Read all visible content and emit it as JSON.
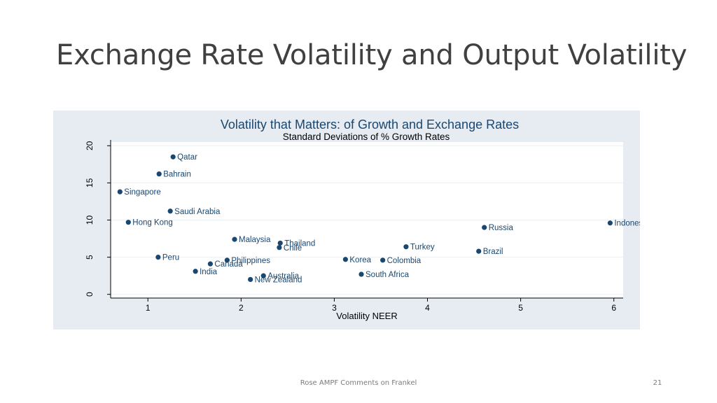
{
  "slide": {
    "title": "Exchange Rate Volatility and Output Volatility",
    "footer": "Rose AMPF Comments on Frankel",
    "page_number": "21"
  },
  "colors": {
    "panel_background": "#e6ecf2",
    "plot_background": "#ffffff",
    "marker": "#1a476f",
    "chart_title": "#1a476f",
    "gridline": "#eaf0f4"
  },
  "chart_data": {
    "type": "scatter",
    "title": "Volatility that Matters: of Growth and Exchange Rates",
    "subtitle": "Standard Deviations of % Growth Rates",
    "xlabel": "Volatility NEER",
    "ylabel": "",
    "xlim": [
      0.6,
      6.1
    ],
    "ylim": [
      -0.5,
      20.5
    ],
    "xticks": [
      1,
      2,
      3,
      4,
      5,
      6
    ],
    "yticks": [
      0,
      5,
      10,
      15,
      20
    ],
    "grid": true,
    "points": [
      {
        "label": "Qatar",
        "x": 1.27,
        "y": 18.5
      },
      {
        "label": "Bahrain",
        "x": 1.12,
        "y": 16.2
      },
      {
        "label": "Singapore",
        "x": 0.7,
        "y": 13.8
      },
      {
        "label": "Saudi Arabia",
        "x": 1.24,
        "y": 11.2
      },
      {
        "label": "Hong Kong",
        "x": 0.79,
        "y": 9.7
      },
      {
        "label": "Russia",
        "x": 4.61,
        "y": 9.0
      },
      {
        "label": "Indonesia",
        "x": 5.96,
        "y": 9.6
      },
      {
        "label": "Malaysia",
        "x": 1.93,
        "y": 7.4
      },
      {
        "label": "Thailand",
        "x": 2.42,
        "y": 6.9
      },
      {
        "label": "Chile",
        "x": 2.41,
        "y": 6.3
      },
      {
        "label": "Turkey",
        "x": 3.77,
        "y": 6.4
      },
      {
        "label": "Brazil",
        "x": 4.55,
        "y": 5.8
      },
      {
        "label": "Peru",
        "x": 1.11,
        "y": 5.0
      },
      {
        "label": "Philippines",
        "x": 1.85,
        "y": 4.6
      },
      {
        "label": "Canada",
        "x": 1.67,
        "y": 4.1
      },
      {
        "label": "Korea",
        "x": 3.12,
        "y": 4.7
      },
      {
        "label": "Colombia",
        "x": 3.52,
        "y": 4.6
      },
      {
        "label": "India",
        "x": 1.51,
        "y": 3.1
      },
      {
        "label": "Australia",
        "x": 2.24,
        "y": 2.5
      },
      {
        "label": "New Zealand",
        "x": 2.1,
        "y": 2.0
      },
      {
        "label": "South Africa",
        "x": 3.29,
        "y": 2.7
      }
    ]
  }
}
